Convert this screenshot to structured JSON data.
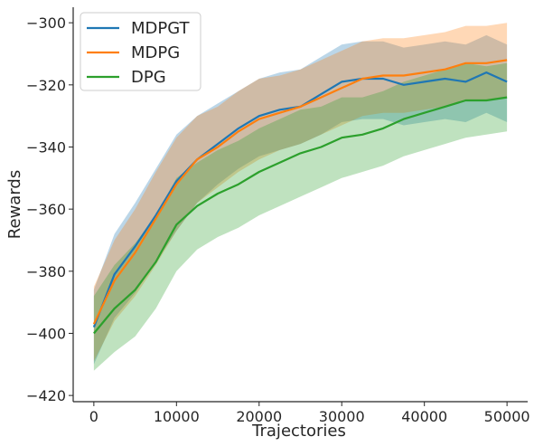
{
  "chart_data": {
    "type": "line",
    "title": "",
    "xlabel": "Trajectories",
    "ylabel": "Rewards",
    "xlim": [
      -2500,
      52500
    ],
    "ylim": [
      -422,
      -295
    ],
    "xticks": [
      0,
      10000,
      20000,
      30000,
      40000,
      50000
    ],
    "yticks": [
      -420,
      -400,
      -380,
      -360,
      -340,
      -320,
      -300
    ],
    "xtick_labels": [
      "0",
      "10000",
      "20000",
      "30000",
      "40000",
      "50000"
    ],
    "ytick_labels": [
      "−420",
      "−400",
      "−380",
      "−360",
      "−340",
      "−320",
      "−300"
    ],
    "grid": false,
    "legend_position": "top-left",
    "x": [
      0,
      2500,
      5000,
      7500,
      10000,
      12500,
      15000,
      17500,
      20000,
      22500,
      25000,
      27500,
      30000,
      32500,
      35000,
      37500,
      40000,
      42500,
      45000,
      47500,
      50000
    ],
    "series": [
      {
        "name": "MDPGT",
        "color": "#1f77b4",
        "mean": [
          -398,
          -381,
          -372,
          -362,
          -351,
          -344,
          -339,
          -334,
          -330,
          -328,
          -327,
          -323,
          -319,
          -318,
          -318,
          -320,
          -319,
          -318,
          -319,
          -316,
          -319
        ],
        "lower": [
          -410,
          -395,
          -387,
          -377,
          -367,
          -358,
          -352,
          -347,
          -343,
          -341,
          -339,
          -336,
          -332,
          -331,
          -331,
          -333,
          -332,
          -331,
          -332,
          -329,
          -332
        ],
        "upper": [
          -386,
          -368,
          -358,
          -347,
          -336,
          -330,
          -326,
          -322,
          -318,
          -316,
          -315,
          -311,
          -307,
          -306,
          -306,
          -308,
          -307,
          -306,
          -307,
          -304,
          -307
        ]
      },
      {
        "name": "MDPG",
        "color": "#ff7f0e",
        "mean": [
          -397,
          -383,
          -374,
          -363,
          -352,
          -344,
          -340,
          -335,
          -331,
          -329,
          -327,
          -324,
          -321,
          -318,
          -317,
          -317,
          -316,
          -315,
          -313,
          -313,
          -312
        ],
        "lower": [
          -409,
          -396,
          -388,
          -378,
          -367,
          -358,
          -353,
          -348,
          -344,
          -341,
          -339,
          -336,
          -333,
          -330,
          -329,
          -329,
          -328,
          -327,
          -325,
          -325,
          -324
        ],
        "upper": [
          -385,
          -370,
          -360,
          -348,
          -337,
          -330,
          -327,
          -322,
          -318,
          -317,
          -315,
          -312,
          -309,
          -306,
          -305,
          -305,
          -304,
          -303,
          -301,
          -301,
          -300
        ]
      },
      {
        "name": "DPG",
        "color": "#2ca02c",
        "mean": [
          -400,
          -392,
          -386,
          -377,
          -365,
          -359,
          -355,
          -352,
          -348,
          -345,
          -342,
          -340,
          -337,
          -336,
          -334,
          -331,
          -329,
          -327,
          -325,
          -325,
          -324
        ],
        "lower": [
          -412,
          -406,
          -401,
          -392,
          -380,
          -373,
          -369,
          -366,
          -362,
          -359,
          -356,
          -353,
          -350,
          -348,
          -346,
          -343,
          -341,
          -339,
          -337,
          -336,
          -335
        ],
        "upper": [
          -388,
          -378,
          -371,
          -362,
          -350,
          -345,
          -341,
          -338,
          -334,
          -331,
          -328,
          -327,
          -324,
          -324,
          -322,
          -319,
          -317,
          -315,
          -313,
          -314,
          -313
        ]
      }
    ]
  }
}
